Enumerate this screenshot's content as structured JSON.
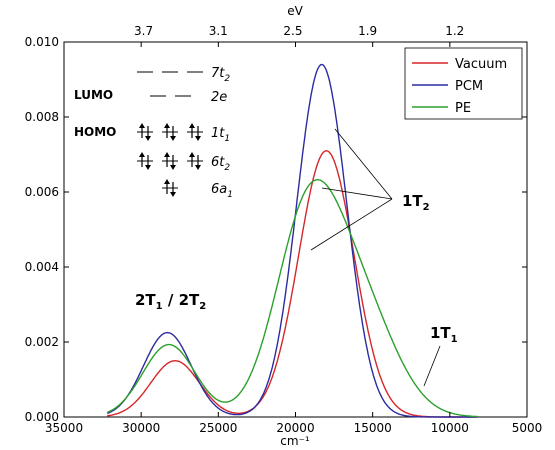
{
  "chart_data": {
    "type": "line",
    "xlabel": "cm⁻¹",
    "top_xlabel": "eV",
    "xlim": [
      35000,
      5000
    ],
    "ylim": [
      0,
      0.01
    ],
    "x_ticks": [
      35000,
      30000,
      25000,
      20000,
      15000,
      10000,
      5000
    ],
    "x_tick_labels": [
      "35000",
      "30000",
      "25000",
      "20000",
      "15000",
      "10000",
      "5000"
    ],
    "y_ticks": [
      0,
      0.002,
      0.004,
      0.006,
      0.008,
      0.01
    ],
    "y_tick_labels": [
      "0.000",
      "0.002",
      "0.004",
      "0.006",
      "0.008",
      "0.010"
    ],
    "top_ticks": [
      {
        "label": "3.7",
        "x": 29843
      },
      {
        "label": "3.1",
        "x": 25003
      },
      {
        "label": "2.5",
        "x": 20164
      },
      {
        "label": "1.9",
        "x": 15325
      },
      {
        "label": "1.2",
        "x": 9679
      }
    ],
    "legend_position": "top-right",
    "grid": false,
    "series": [
      {
        "name": "Vacuum",
        "color": "#d62728",
        "x_start": 32200,
        "x_end": 8200,
        "peaks": [
          {
            "center": 27800,
            "height": 0.0015,
            "width": 1580
          },
          {
            "center": 18000,
            "height": 0.0071,
            "width": 1800
          }
        ],
        "tail": {
          "amp": 0.0,
          "center": 12000,
          "width": 1800
        }
      },
      {
        "name": "PCM",
        "color": "#2c2ca0",
        "x_start": 32200,
        "x_end": 8200,
        "peaks": [
          {
            "center": 28300,
            "height": 0.00225,
            "width": 1550
          },
          {
            "center": 18300,
            "height": 0.0094,
            "width": 1620
          }
        ],
        "tail": {
          "amp": 0.0,
          "center": 12000,
          "width": 1800
        }
      },
      {
        "name": "PE",
        "color": "#2ca02c",
        "x_start": 32200,
        "x_end": 8200,
        "peaks": [
          {
            "center": 28200,
            "height": 0.00193,
            "width": 1700
          },
          {
            "center": 19200,
            "height": 0.0052,
            "width": 2100
          }
        ],
        "tail": {
          "amp": 0.0028,
          "center": 15800,
          "width": 2300
        }
      }
    ],
    "annotations": {
      "band_1t2": {
        "main": "1T",
        "sub": "2"
      },
      "band_2t1_2t2": {
        "part1": "2T",
        "sub1": "1",
        "sep": " / 2T",
        "sub2": "2"
      },
      "band_1t1": {
        "main": "1T",
        "sub": "1"
      }
    },
    "orbital_diagram": {
      "lumo_label": "LUMO",
      "homo_label": "HOMO",
      "levels": [
        {
          "label": "7t",
          "sub": "2",
          "type": "empty-triple"
        },
        {
          "label": "2e",
          "sub": "",
          "type": "empty-double"
        },
        {
          "label": "1t",
          "sub": "1",
          "type": "filled-triple"
        },
        {
          "label": "6t",
          "sub": "2",
          "type": "filled-triple"
        },
        {
          "label": "6a",
          "sub": "1",
          "type": "filled-single"
        }
      ]
    }
  }
}
